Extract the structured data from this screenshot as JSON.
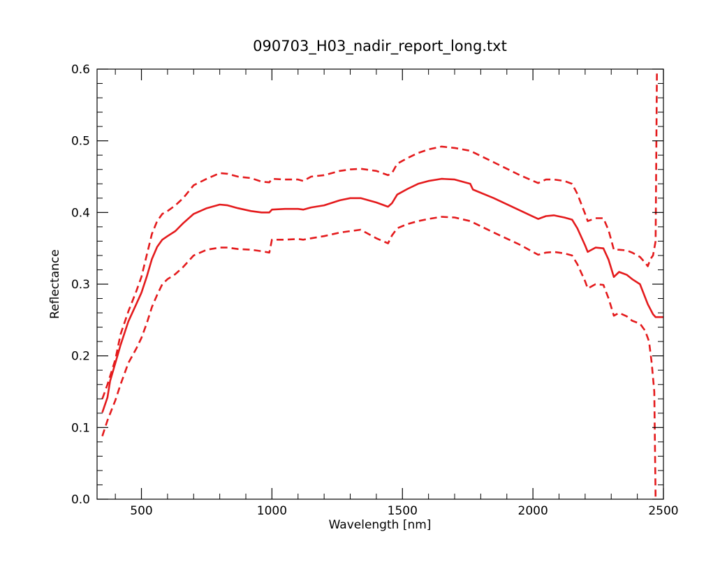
{
  "chart_data": {
    "type": "line",
    "title": "090703_H03_nadir_report_long.txt",
    "xlabel": "Wavelength [nm]",
    "ylabel": "Reflectance",
    "xlim": [
      330,
      2500
    ],
    "ylim": [
      0.0,
      0.6
    ],
    "grid": false,
    "legend": "none",
    "x_ticks": [
      500,
      1000,
      1500,
      2000,
      2500
    ],
    "x_tick_labels": [
      "500",
      "1000",
      "1500",
      "2000",
      "2500"
    ],
    "y_ticks": [
      0.0,
      0.1,
      0.2,
      0.3,
      0.4,
      0.5,
      0.6
    ],
    "y_tick_labels": [
      "0.0",
      "0.1",
      "0.2",
      "0.3",
      "0.4",
      "0.5",
      "0.6"
    ],
    "series": [
      {
        "style": "solid",
        "color": "#e41a1c",
        "points": [
          [
            350,
            0.121
          ],
          [
            370,
            0.142
          ],
          [
            380,
            0.165
          ],
          [
            400,
            0.19
          ],
          [
            420,
            0.215
          ],
          [
            450,
            0.248
          ],
          [
            480,
            0.272
          ],
          [
            500,
            0.288
          ],
          [
            520,
            0.31
          ],
          [
            540,
            0.335
          ],
          [
            560,
            0.352
          ],
          [
            580,
            0.362
          ],
          [
            600,
            0.367
          ],
          [
            630,
            0.374
          ],
          [
            660,
            0.385
          ],
          [
            700,
            0.398
          ],
          [
            750,
            0.406
          ],
          [
            800,
            0.411
          ],
          [
            830,
            0.41
          ],
          [
            870,
            0.406
          ],
          [
            920,
            0.402
          ],
          [
            960,
            0.4
          ],
          [
            990,
            0.4
          ],
          [
            1000,
            0.404
          ],
          [
            1050,
            0.405
          ],
          [
            1100,
            0.405
          ],
          [
            1120,
            0.404
          ],
          [
            1150,
            0.407
          ],
          [
            1200,
            0.41
          ],
          [
            1260,
            0.417
          ],
          [
            1300,
            0.42
          ],
          [
            1340,
            0.42
          ],
          [
            1400,
            0.414
          ],
          [
            1445,
            0.408
          ],
          [
            1460,
            0.413
          ],
          [
            1480,
            0.425
          ],
          [
            1520,
            0.433
          ],
          [
            1560,
            0.44
          ],
          [
            1600,
            0.444
          ],
          [
            1650,
            0.447
          ],
          [
            1700,
            0.446
          ],
          [
            1740,
            0.442
          ],
          [
            1760,
            0.44
          ],
          [
            1770,
            0.432
          ],
          [
            1850,
            0.42
          ],
          [
            1950,
            0.403
          ],
          [
            2020,
            0.391
          ],
          [
            2050,
            0.395
          ],
          [
            2080,
            0.396
          ],
          [
            2120,
            0.393
          ],
          [
            2150,
            0.39
          ],
          [
            2170,
            0.378
          ],
          [
            2200,
            0.354
          ],
          [
            2210,
            0.345
          ],
          [
            2240,
            0.351
          ],
          [
            2270,
            0.35
          ],
          [
            2290,
            0.334
          ],
          [
            2310,
            0.31
          ],
          [
            2330,
            0.317
          ],
          [
            2360,
            0.313
          ],
          [
            2380,
            0.307
          ],
          [
            2410,
            0.3
          ],
          [
            2440,
            0.272
          ],
          [
            2460,
            0.258
          ],
          [
            2470,
            0.254
          ],
          [
            2500,
            0.254
          ]
        ]
      },
      {
        "style": "dashed",
        "color": "#e41a1c",
        "points": [
          [
            350,
            0.14
          ],
          [
            370,
            0.16
          ],
          [
            400,
            0.195
          ],
          [
            420,
            0.23
          ],
          [
            450,
            0.262
          ],
          [
            480,
            0.29
          ],
          [
            500,
            0.31
          ],
          [
            520,
            0.34
          ],
          [
            540,
            0.37
          ],
          [
            560,
            0.388
          ],
          [
            580,
            0.398
          ],
          [
            600,
            0.402
          ],
          [
            630,
            0.41
          ],
          [
            660,
            0.42
          ],
          [
            700,
            0.438
          ],
          [
            750,
            0.447
          ],
          [
            800,
            0.455
          ],
          [
            830,
            0.454
          ],
          [
            870,
            0.45
          ],
          [
            920,
            0.448
          ],
          [
            960,
            0.443
          ],
          [
            990,
            0.442
          ],
          [
            1000,
            0.447
          ],
          [
            1050,
            0.446
          ],
          [
            1100,
            0.446
          ],
          [
            1120,
            0.444
          ],
          [
            1150,
            0.45
          ],
          [
            1200,
            0.452
          ],
          [
            1260,
            0.458
          ],
          [
            1300,
            0.46
          ],
          [
            1340,
            0.461
          ],
          [
            1400,
            0.458
          ],
          [
            1445,
            0.452
          ],
          [
            1460,
            0.455
          ],
          [
            1480,
            0.468
          ],
          [
            1520,
            0.476
          ],
          [
            1560,
            0.483
          ],
          [
            1600,
            0.488
          ],
          [
            1650,
            0.492
          ],
          [
            1700,
            0.49
          ],
          [
            1760,
            0.486
          ],
          [
            1850,
            0.47
          ],
          [
            1950,
            0.452
          ],
          [
            2020,
            0.441
          ],
          [
            2050,
            0.446
          ],
          [
            2080,
            0.446
          ],
          [
            2120,
            0.444
          ],
          [
            2150,
            0.44
          ],
          [
            2170,
            0.426
          ],
          [
            2200,
            0.398
          ],
          [
            2210,
            0.388
          ],
          [
            2240,
            0.392
          ],
          [
            2270,
            0.392
          ],
          [
            2290,
            0.375
          ],
          [
            2310,
            0.348
          ],
          [
            2330,
            0.348
          ],
          [
            2360,
            0.347
          ],
          [
            2380,
            0.344
          ],
          [
            2410,
            0.338
          ],
          [
            2430,
            0.33
          ],
          [
            2440,
            0.325
          ],
          [
            2450,
            0.335
          ],
          [
            2460,
            0.34
          ],
          [
            2470,
            0.36
          ],
          [
            2475,
            0.6
          ]
        ]
      },
      {
        "style": "dashed",
        "color": "#e41a1c",
        "points": [
          [
            350,
            0.088
          ],
          [
            370,
            0.11
          ],
          [
            400,
            0.138
          ],
          [
            420,
            0.16
          ],
          [
            450,
            0.19
          ],
          [
            480,
            0.21
          ],
          [
            500,
            0.225
          ],
          [
            520,
            0.245
          ],
          [
            540,
            0.268
          ],
          [
            560,
            0.285
          ],
          [
            580,
            0.3
          ],
          [
            600,
            0.307
          ],
          [
            630,
            0.314
          ],
          [
            660,
            0.324
          ],
          [
            700,
            0.34
          ],
          [
            750,
            0.348
          ],
          [
            800,
            0.351
          ],
          [
            830,
            0.351
          ],
          [
            870,
            0.349
          ],
          [
            920,
            0.348
          ],
          [
            960,
            0.346
          ],
          [
            990,
            0.344
          ],
          [
            1000,
            0.362
          ],
          [
            1050,
            0.362
          ],
          [
            1100,
            0.363
          ],
          [
            1120,
            0.362
          ],
          [
            1150,
            0.364
          ],
          [
            1200,
            0.367
          ],
          [
            1260,
            0.372
          ],
          [
            1300,
            0.374
          ],
          [
            1340,
            0.376
          ],
          [
            1400,
            0.364
          ],
          [
            1445,
            0.357
          ],
          [
            1460,
            0.368
          ],
          [
            1480,
            0.378
          ],
          [
            1520,
            0.384
          ],
          [
            1560,
            0.388
          ],
          [
            1600,
            0.391
          ],
          [
            1650,
            0.394
          ],
          [
            1700,
            0.393
          ],
          [
            1760,
            0.388
          ],
          [
            1850,
            0.372
          ],
          [
            1950,
            0.355
          ],
          [
            2020,
            0.341
          ],
          [
            2050,
            0.344
          ],
          [
            2080,
            0.345
          ],
          [
            2120,
            0.343
          ],
          [
            2150,
            0.34
          ],
          [
            2170,
            0.328
          ],
          [
            2200,
            0.304
          ],
          [
            2210,
            0.294
          ],
          [
            2240,
            0.3
          ],
          [
            2270,
            0.299
          ],
          [
            2290,
            0.28
          ],
          [
            2310,
            0.256
          ],
          [
            2330,
            0.26
          ],
          [
            2360,
            0.255
          ],
          [
            2380,
            0.249
          ],
          [
            2410,
            0.245
          ],
          [
            2430,
            0.235
          ],
          [
            2445,
            0.22
          ],
          [
            2455,
            0.19
          ],
          [
            2465,
            0.15
          ],
          [
            2470,
            0.0
          ]
        ]
      }
    ]
  }
}
